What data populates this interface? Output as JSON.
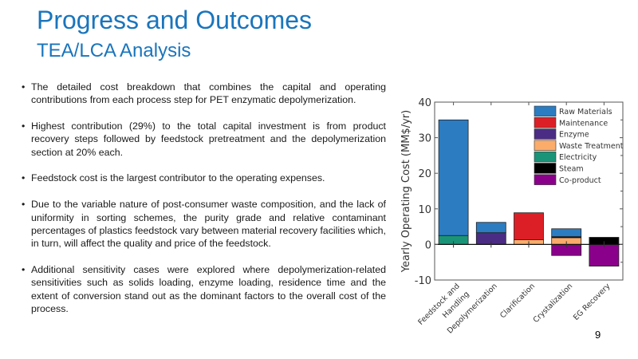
{
  "slide": {
    "title": "Progress and Outcomes",
    "subtitle": "TEA/LCA Analysis",
    "page_number": "9",
    "bullet_glyph": "•",
    "bullets": [
      "The detailed cost breakdown that combines the capital and operating contributions from each process step for PET enzymatic depolymerization.",
      "Highest contribution (29%) to the total capital investment is from product recovery steps followed by feedstock pretreatment and the depolymerization section at 20% each.",
      "Feedstock cost is the largest contributor to the operating expenses.",
      "Due to the variable nature of post-consumer waste composition, and the lack of uniformity in sorting schemes, the purity grade and relative contaminant percentages of plastics feedstock vary between material recovery facilities which, in turn, will affect the quality and price of the feedstock.",
      "Additional sensitivity cases were explored where depolymerization-related sensitivities such as solids loading, enzyme loading, residence time and the extent of conversion stand out as the dominant factors to the overall cost of the process."
    ],
    "title_color": "#1a75bc"
  },
  "chart_data": {
    "type": "bar",
    "stacked": true,
    "title": "",
    "xlabel": "",
    "ylabel": "Yearly Operating Cost (MM$/yr)",
    "ylim": [
      -10,
      40
    ],
    "yticks": [
      -10,
      0,
      10,
      20,
      30,
      40
    ],
    "grid": false,
    "legend_position": "top-right",
    "categories": [
      "Feedstock and Handling",
      "Depolymerization",
      "Clarification",
      "Crystalization",
      "EG Recovery"
    ],
    "category_label_lines": [
      [
        "Feedstock and",
        "Handling"
      ],
      [
        "Depolymerization"
      ],
      [
        "Clarification"
      ],
      [
        "Crystalization"
      ],
      [
        "EG Recovery"
      ]
    ],
    "series": [
      {
        "name": "Electricity",
        "color": "#1a9479",
        "values": [
          2.5,
          0,
          0,
          0,
          0
        ]
      },
      {
        "name": "Enzyme",
        "color": "#4b2c85",
        "values": [
          0,
          3.3,
          0,
          0,
          0
        ]
      },
      {
        "name": "Waste Treatment",
        "color": "#fbac6b",
        "values": [
          0,
          0,
          1.3,
          1.9,
          0
        ]
      },
      {
        "name": "Steam",
        "color": "#000000",
        "values": [
          0,
          0,
          0,
          0.3,
          2.0
        ]
      },
      {
        "name": "Maintenance",
        "color": "#dc1f26",
        "values": [
          0,
          0,
          7.6,
          0,
          0
        ]
      },
      {
        "name": "Raw Materials",
        "color": "#2c7cc1",
        "values": [
          32.5,
          2.9,
          0,
          2.2,
          0
        ]
      },
      {
        "name": "Co-product",
        "color": "#8b008b",
        "values": [
          0,
          0,
          0,
          -3.1,
          -6.1
        ]
      }
    ],
    "legend_order": [
      "Raw Materials",
      "Maintenance",
      "Enzyme",
      "Waste Treatment",
      "Electricity",
      "Steam",
      "Co-product"
    ]
  }
}
